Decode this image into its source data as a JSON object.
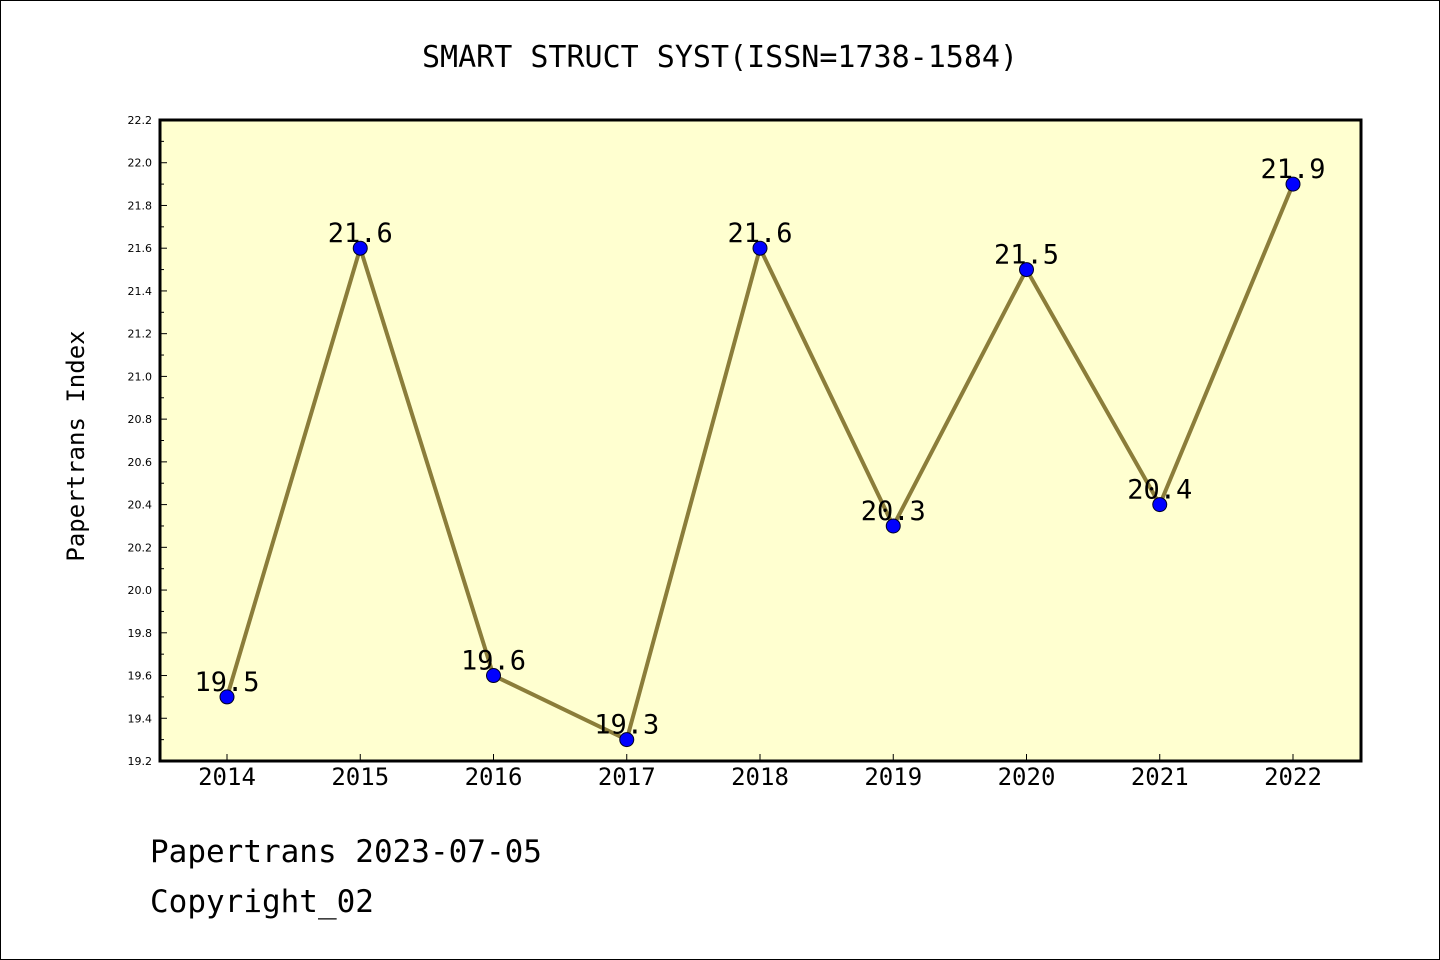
{
  "chart_data": {
    "type": "line",
    "title": "SMART STRUCT SYST(ISSN=1738-1584)",
    "xlabel": "",
    "ylabel": "Papertrans Index",
    "categories": [
      "2014",
      "2015",
      "2016",
      "2017",
      "2018",
      "2019",
      "2020",
      "2021",
      "2022"
    ],
    "values": [
      19.5,
      21.6,
      19.6,
      19.3,
      21.6,
      20.3,
      21.5,
      20.4,
      21.9
    ],
    "data_labels": [
      "19.5",
      "21.6",
      "19.6",
      "19.3",
      "21.6",
      "20.3",
      "21.5",
      "20.4",
      "21.9"
    ],
    "ylim": [
      19.2,
      22.2
    ],
    "yticks": [
      "19.2",
      "19.4",
      "19.6",
      "19.8",
      "20.0",
      "20.2",
      "20.4",
      "20.6",
      "20.8",
      "21.0",
      "21.2",
      "21.4",
      "21.6",
      "21.8",
      "22.0",
      "22.2"
    ],
    "grid": false,
    "line_color": "#8b7d3a",
    "marker_color": "#0000ff",
    "plot_background": "#ffffd0"
  },
  "footer": {
    "line1": "Papertrans 2023-07-05",
    "line2": "Copyright_02"
  }
}
